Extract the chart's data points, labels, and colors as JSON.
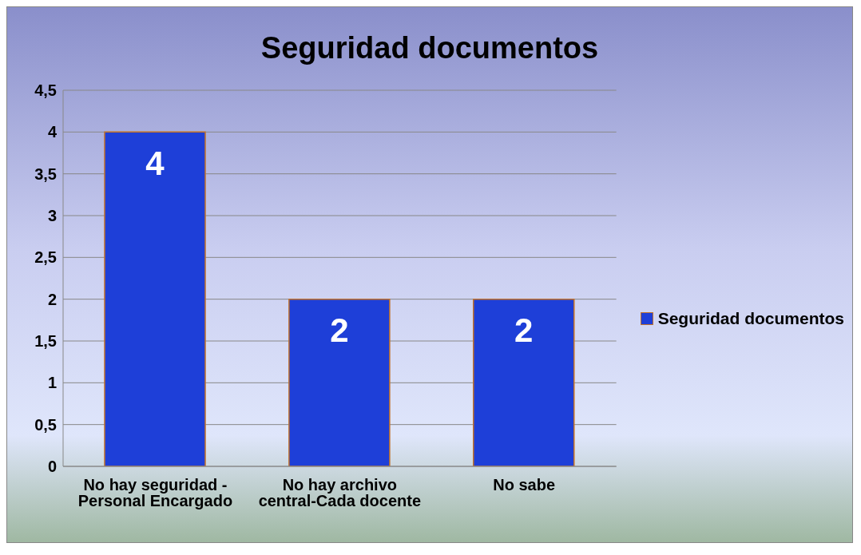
{
  "chart_data": {
    "type": "bar",
    "title": "Seguridad documentos",
    "categories": [
      "No hay seguridad - Personal Encargado",
      "No hay archivo central-Cada docente",
      "No sabe"
    ],
    "series": [
      {
        "name": "Seguridad documentos",
        "color": "#1e3fd8",
        "values": [
          4,
          2,
          2
        ]
      }
    ],
    "ylim": [
      0,
      4.5
    ],
    "yticks": [
      0,
      {
        "value": 0.5,
        "label": "0,5"
      },
      1,
      {
        "value": 1.5,
        "label": "1,5"
      },
      2,
      {
        "value": 2.5,
        "label": "2,5"
      },
      3,
      {
        "value": 3.5,
        "label": "3,5"
      },
      4,
      {
        "value": 4.5,
        "label": "4,5"
      }
    ],
    "grid": "y",
    "legend": "right",
    "data_labels": true
  }
}
